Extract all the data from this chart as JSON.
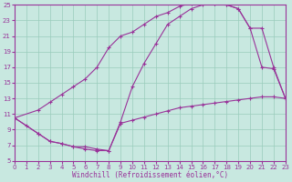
{
  "bg_color": "#c8e8e0",
  "line_color": "#993399",
  "grid_color": "#99ccbb",
  "xlabel": "Windchill (Refroidissement éolien,°C)",
  "xlabel_fontsize": 5.5,
  "tick_fontsize": 5.0,
  "xlim": [
    0,
    23
  ],
  "ylim": [
    5,
    25
  ],
  "yticks": [
    5,
    7,
    9,
    11,
    13,
    15,
    17,
    19,
    21,
    23,
    25
  ],
  "xticks": [
    0,
    1,
    2,
    3,
    4,
    5,
    6,
    7,
    8,
    9,
    10,
    11,
    12,
    13,
    14,
    15,
    16,
    17,
    18,
    19,
    20,
    21,
    22,
    23
  ],
  "curve_bottom_x": [
    0,
    1,
    2,
    3,
    4,
    5,
    6,
    7,
    8,
    9,
    10,
    11,
    12,
    13,
    14,
    15,
    16,
    17,
    18,
    19,
    20,
    21,
    22,
    23
  ],
  "curve_bottom_y": [
    10.5,
    9.5,
    8.5,
    7.5,
    7.2,
    6.8,
    6.5,
    6.3,
    6.3,
    9.8,
    10.2,
    10.6,
    11.0,
    11.4,
    11.8,
    12.0,
    12.2,
    12.4,
    12.6,
    12.8,
    13.0,
    13.2,
    13.2,
    13.0
  ],
  "curve_upper_x": [
    0,
    2,
    3,
    4,
    5,
    6,
    7,
    8,
    9,
    10,
    11,
    12,
    13,
    14,
    15,
    16,
    17,
    18,
    19,
    20,
    21,
    22,
    23
  ],
  "curve_upper_y": [
    10.5,
    11.5,
    12.5,
    13.5,
    14.5,
    15.5,
    17.0,
    19.5,
    21.0,
    21.5,
    22.5,
    23.5,
    24.0,
    24.8,
    25.2,
    25.2,
    25.2,
    25.0,
    24.5,
    22.0,
    17.0,
    16.8,
    13.0
  ],
  "curve_mid_x": [
    0,
    2,
    3,
    4,
    5,
    6,
    7,
    8,
    9,
    10,
    11,
    12,
    13,
    14,
    15,
    16,
    17,
    18,
    19,
    20,
    21,
    22,
    23
  ],
  "curve_mid_y": [
    10.5,
    8.5,
    7.5,
    7.2,
    6.8,
    6.8,
    6.5,
    6.3,
    10.0,
    14.5,
    17.5,
    20.0,
    22.5,
    23.5,
    24.5,
    25.0,
    25.2,
    25.0,
    24.5,
    22.0,
    22.0,
    17.0,
    13.0
  ]
}
